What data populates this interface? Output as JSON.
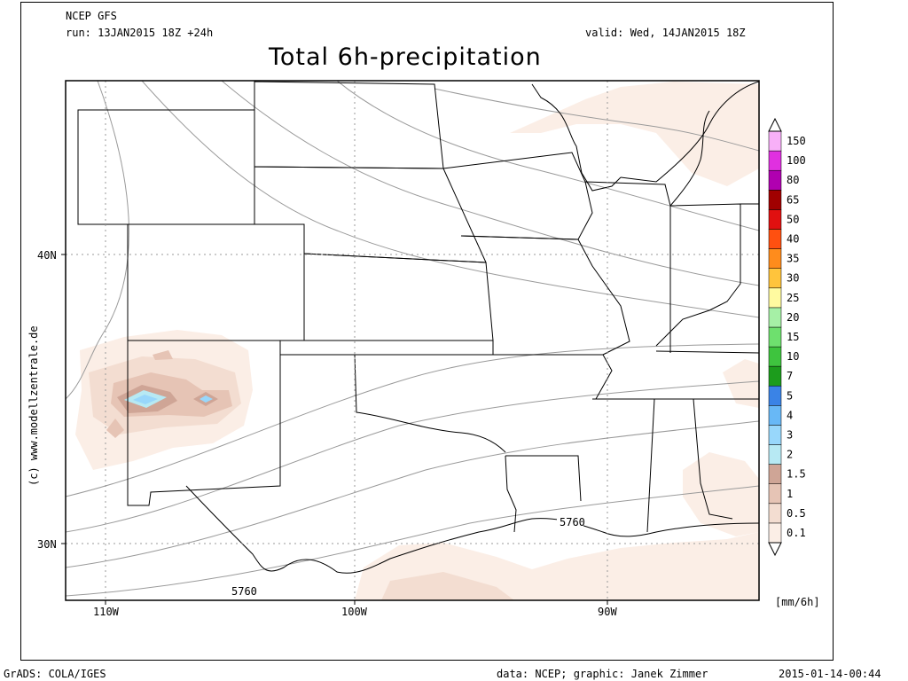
{
  "header": {
    "model": "NCEP GFS",
    "run": "run: 13JAN2015 18Z +24h",
    "valid": "valid: Wed, 14JAN2015 18Z",
    "title": "Total 6h-precipitation"
  },
  "axes": {
    "lat_labels": [
      "40N",
      "30N"
    ],
    "lon_labels": [
      "110W",
      "100W",
      "90W"
    ]
  },
  "contour_labels": [
    "5760",
    "5760"
  ],
  "watermark": "(c) www.modellzentrale.de",
  "legend": {
    "unit": "[mm/6h]",
    "levels": [
      "0.1",
      "0.5",
      "1",
      "1.5",
      "2",
      "3",
      "4",
      "5",
      "7",
      "10",
      "15",
      "20",
      "25",
      "30",
      "35",
      "40",
      "50",
      "65",
      "80",
      "100",
      "150"
    ],
    "colors": [
      "#fbeee6",
      "#f3ddd1",
      "#e6c4b5",
      "#cfa596",
      "#b7e9f3",
      "#98d7fb",
      "#68b8f6",
      "#3a83e6",
      "#1c9c1c",
      "#3ec43e",
      "#6ee06e",
      "#a6f0a6",
      "#fffaa0",
      "#ffc43c",
      "#ff8c1c",
      "#ff5010",
      "#e01010",
      "#a00000",
      "#b000b0",
      "#e030e0",
      "#f8b0f8"
    ]
  },
  "footer": {
    "left": "GrADS: COLA/IGES",
    "center": "data: NCEP; graphic: Janek Zimmer",
    "right": "2015-01-14-00:44"
  }
}
